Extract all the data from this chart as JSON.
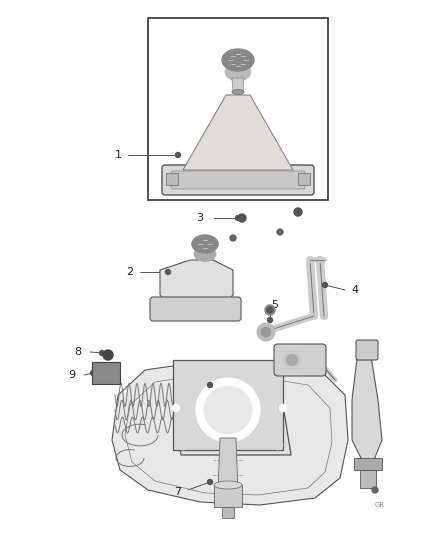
{
  "background_color": "#ffffff",
  "fig_width": 4.38,
  "fig_height": 5.33,
  "dpi": 100,
  "line_color": "#444444",
  "text_color": "#222222",
  "part_fill": "#e8e8e8",
  "part_fill2": "#d0d0d0",
  "part_fill3": "#f0f0f0"
}
